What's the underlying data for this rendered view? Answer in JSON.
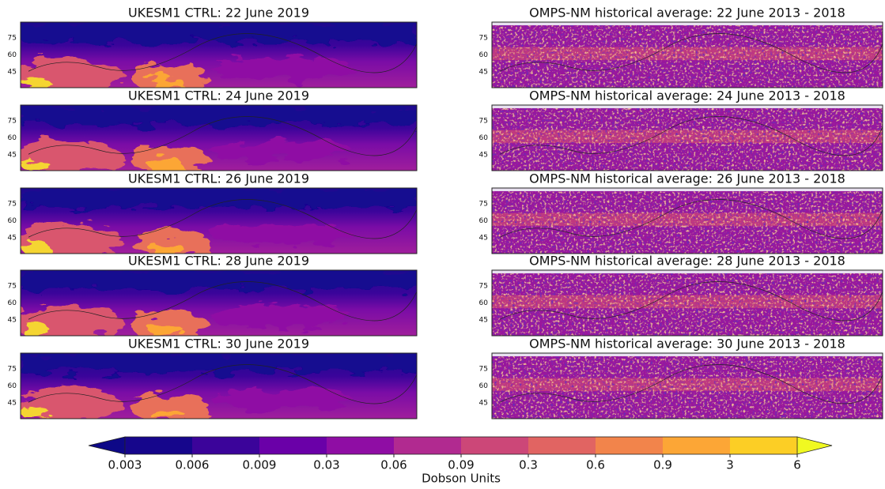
{
  "panels": [
    {
      "title": "UKESM1 CTRL: 22 June 2019",
      "yticks": [
        75,
        60,
        45
      ]
    },
    {
      "title": "OMPS-NM historical average: 22 June 2013 - 2018",
      "yticks": [
        75,
        60,
        45
      ]
    },
    {
      "title": "UKESM1 CTRL: 24 June 2019",
      "yticks": [
        75,
        60,
        45
      ]
    },
    {
      "title": "OMPS-NM historical average: 24 June 2013 - 2018",
      "yticks": [
        75,
        60,
        45
      ]
    },
    {
      "title": "UKESM1 CTRL: 26 June 2019",
      "yticks": [
        75,
        60,
        45
      ]
    },
    {
      "title": "OMPS-NM historical average: 26 June 2013 - 2018",
      "yticks": [
        75,
        60,
        45
      ]
    },
    {
      "title": "UKESM1 CTRL: 28 June 2019",
      "yticks": [
        75,
        60,
        45
      ]
    },
    {
      "title": "OMPS-NM historical average: 28 June 2013 - 2018",
      "yticks": [
        75,
        60,
        45
      ]
    },
    {
      "title": "UKESM1 CTRL: 30 June 2019",
      "yticks": [
        75,
        60,
        45
      ]
    },
    {
      "title": "OMPS-NM historical average: 30 June 2013 - 2018",
      "yticks": [
        75,
        60,
        45
      ]
    }
  ],
  "colorbar": {
    "label": "Dobson Units",
    "ticks": [
      0.003,
      0.006,
      0.009,
      0.03,
      0.06,
      0.09,
      0.3,
      0.6,
      0.9,
      3,
      6
    ],
    "colors": [
      "#16068c",
      "#3b049a",
      "#6a00a8",
      "#8f0da4",
      "#b12a90",
      "#cc4778",
      "#e16462",
      "#f2844b",
      "#fca636",
      "#fcce25"
    ],
    "under_color": "#0d0887",
    "over_color": "#f0f921"
  }
}
